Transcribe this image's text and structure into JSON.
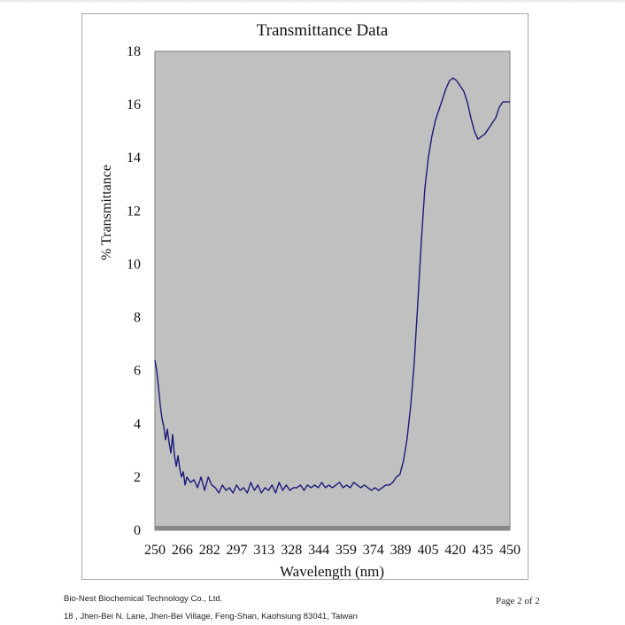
{
  "footer": {
    "company": "Bio-Nest Biochemical Technology Co., Ltd.",
    "address": "18 , Jhen-Bei N. Lane, Jhen-Bei Village, Feng-Shan, Kaohsiung 83041, Taiwan",
    "page": "Page 2  of  2"
  },
  "chart_data": {
    "type": "line",
    "title": "Transmittance Data",
    "xlabel": "Wavelength (nm)",
    "ylabel": "% Transmittance",
    "xlim": [
      250,
      450
    ],
    "ylim": [
      0,
      18
    ],
    "x_tick_labels": [
      "250",
      "266",
      "282",
      "297",
      "313",
      "328",
      "344",
      "359",
      "374",
      "389",
      "405",
      "420",
      "435",
      "450"
    ],
    "y_ticks": [
      0,
      2,
      4,
      6,
      8,
      10,
      12,
      14,
      16,
      18
    ],
    "y_tick_labels": [
      "0",
      "2",
      "4",
      "6",
      "8",
      "10",
      "12",
      "14",
      "16",
      "18"
    ],
    "grid": false,
    "legend": "none",
    "plot_background": "#c0c0c0",
    "line_color": "#1a1a7a",
    "series": [
      {
        "x": [
          250,
          251,
          252,
          253,
          254,
          255,
          256,
          257,
          258,
          259,
          260,
          261,
          262,
          263,
          264,
          265,
          266,
          267,
          268,
          270,
          272,
          274,
          276,
          278,
          280,
          282,
          284,
          286,
          288,
          290,
          292,
          294,
          296,
          298,
          300,
          302,
          304,
          306,
          308,
          310,
          312,
          314,
          316,
          318,
          320,
          322,
          324,
          326,
          328,
          330,
          332,
          334,
          336,
          338,
          340,
          342,
          344,
          346,
          348,
          350,
          352,
          354,
          356,
          358,
          360,
          362,
          364,
          366,
          368,
          370,
          372,
          374,
          376,
          378,
          380,
          382,
          384,
          386,
          388,
          390,
          392,
          394,
          396,
          398,
          400,
          402,
          404,
          406,
          408,
          410,
          412,
          414,
          416,
          418,
          420,
          422,
          424,
          426,
          428,
          430,
          432,
          434,
          436,
          438,
          440,
          442,
          444,
          446,
          448,
          450
        ],
        "y": [
          6.4,
          6.0,
          5.4,
          4.7,
          4.2,
          3.9,
          3.4,
          3.8,
          3.3,
          2.9,
          3.6,
          2.8,
          2.4,
          2.8,
          2.3,
          2.0,
          2.2,
          1.7,
          2.0,
          1.8,
          1.9,
          1.6,
          2.0,
          1.5,
          2.0,
          1.7,
          1.6,
          1.4,
          1.7,
          1.5,
          1.6,
          1.4,
          1.7,
          1.5,
          1.6,
          1.4,
          1.8,
          1.5,
          1.7,
          1.4,
          1.6,
          1.5,
          1.7,
          1.4,
          1.8,
          1.5,
          1.7,
          1.5,
          1.6,
          1.6,
          1.7,
          1.5,
          1.7,
          1.6,
          1.7,
          1.6,
          1.8,
          1.6,
          1.7,
          1.6,
          1.7,
          1.8,
          1.6,
          1.7,
          1.6,
          1.8,
          1.7,
          1.6,
          1.7,
          1.6,
          1.5,
          1.6,
          1.5,
          1.6,
          1.7,
          1.7,
          1.8,
          2.0,
          2.1,
          2.6,
          3.4,
          4.6,
          6.2,
          8.4,
          10.8,
          12.8,
          14.0,
          14.8,
          15.4,
          15.8,
          16.2,
          16.6,
          16.9,
          17.0,
          16.9,
          16.7,
          16.5,
          16.1,
          15.5,
          15.0,
          14.7,
          14.8,
          14.9,
          15.1,
          15.3,
          15.5,
          15.9,
          16.1,
          16.1,
          16.1
        ]
      }
    ]
  }
}
